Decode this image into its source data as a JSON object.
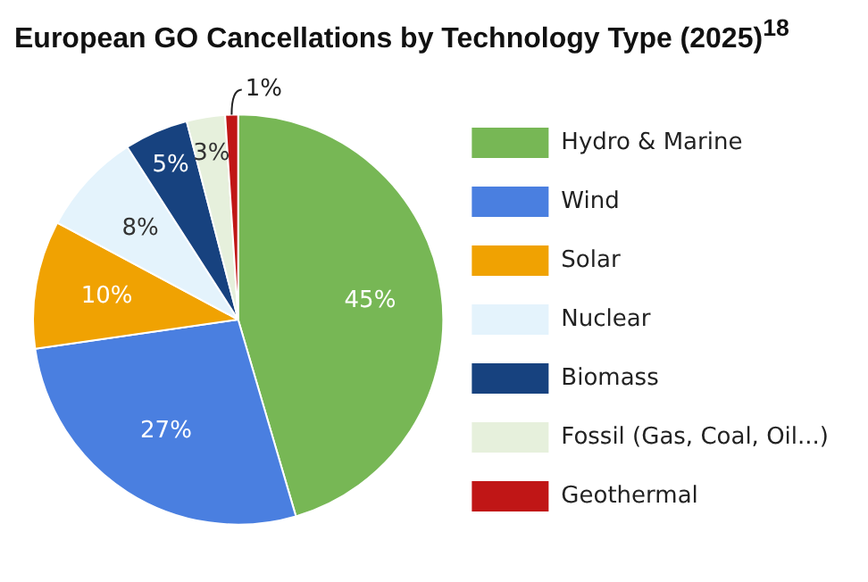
{
  "chart_data": {
    "type": "pie",
    "title": "European GO Cancellations by Technology Type (2025)$^{18}$",
    "categories": [
      "Hydro & Marine",
      "Wind",
      "Solar",
      "Nuclear",
      "Biomass",
      "Fossil (Gas, Coal, Oil...)",
      "Geothermal"
    ],
    "values": [
      45,
      27,
      10,
      8,
      5,
      3,
      1
    ],
    "colors": [
      "#77b755",
      "#4a7fe0",
      "#f0a202",
      "#e4f3fc",
      "#17427f",
      "#e6f0dc",
      "#c01616"
    ],
    "value_labels": [
      "45%",
      "27%",
      "10%",
      "8%",
      "5%",
      "3%",
      "1%"
    ],
    "legend": "right"
  }
}
